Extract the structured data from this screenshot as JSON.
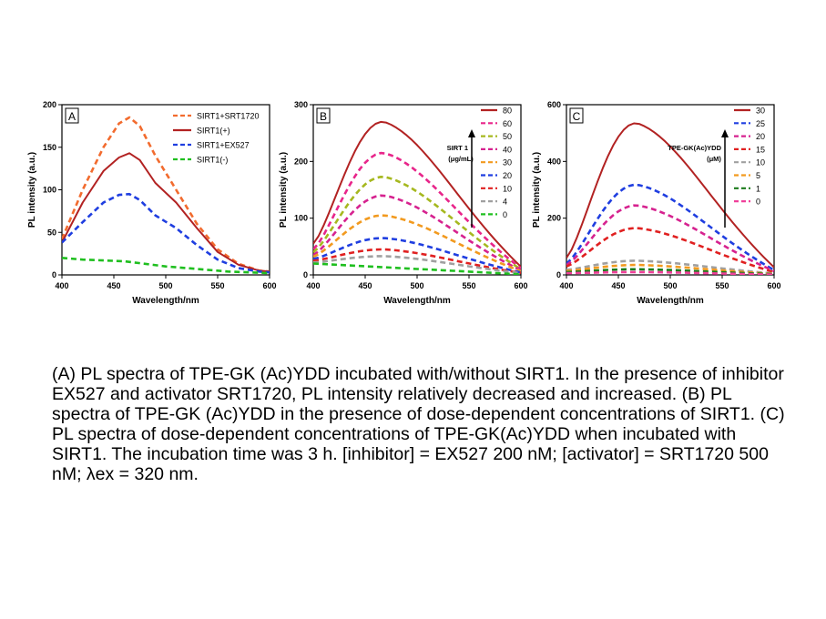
{
  "chart_data": [
    {
      "type": "line",
      "panel_label": "A",
      "xlabel": "Wavelength/nm",
      "ylabel": "PL intensity (a.u.)",
      "xlim": [
        400,
        600
      ],
      "ylim": [
        0,
        200
      ],
      "xticks": [
        400,
        450,
        500,
        550,
        600
      ],
      "yticks": [
        0,
        50,
        100,
        150,
        200
      ],
      "legend_position": "top-right",
      "series": [
        {
          "name": "SIRT1+SRT1720",
          "color": "#f26b2e",
          "dashed": true,
          "points": [
            [
              400,
              42
            ],
            [
              420,
              100
            ],
            [
              440,
              150
            ],
            [
              455,
              178
            ],
            [
              465,
              185
            ],
            [
              475,
              175
            ],
            [
              490,
              140
            ],
            [
              510,
              100
            ],
            [
              530,
              60
            ],
            [
              550,
              30
            ],
            [
              570,
              13
            ],
            [
              590,
              5
            ],
            [
              600,
              4
            ]
          ]
        },
        {
          "name": "SIRT1(+)",
          "color": "#b22222",
          "dashed": false,
          "points": [
            [
              400,
              38
            ],
            [
              420,
              85
            ],
            [
              440,
              122
            ],
            [
              455,
              138
            ],
            [
              465,
              143
            ],
            [
              475,
              135
            ],
            [
              490,
              108
            ],
            [
              510,
              85
            ],
            [
              530,
              55
            ],
            [
              550,
              27
            ],
            [
              570,
              12
            ],
            [
              590,
              5
            ],
            [
              600,
              4
            ]
          ]
        },
        {
          "name": "SIRT1+EX527",
          "color": "#1f3ee0",
          "dashed": true,
          "points": [
            [
              400,
              38
            ],
            [
              420,
              62
            ],
            [
              440,
              85
            ],
            [
              455,
              94
            ],
            [
              465,
              95
            ],
            [
              475,
              88
            ],
            [
              490,
              70
            ],
            [
              510,
              55
            ],
            [
              530,
              35
            ],
            [
              550,
              18
            ],
            [
              570,
              8
            ],
            [
              590,
              4
            ],
            [
              600,
              3
            ]
          ]
        },
        {
          "name": "SIRT1(-)",
          "color": "#1fbf1f",
          "dashed": true,
          "points": [
            [
              400,
              20
            ],
            [
              420,
              18
            ],
            [
              440,
              17
            ],
            [
              460,
              16
            ],
            [
              480,
              13
            ],
            [
              500,
              10
            ],
            [
              520,
              8
            ],
            [
              540,
              6
            ],
            [
              560,
              4
            ],
            [
              580,
              3
            ],
            [
              600,
              2
            ]
          ]
        }
      ]
    },
    {
      "type": "line",
      "panel_label": "B",
      "xlabel": "Wavelength/nm",
      "ylabel": "PL intensity (a.u.)",
      "xlim": [
        400,
        600
      ],
      "ylim": [
        0,
        300
      ],
      "xticks": [
        400,
        450,
        500,
        550,
        600
      ],
      "yticks": [
        0,
        100,
        200,
        300
      ],
      "legend_position": "right",
      "arrow_label": [
        "SIRT 1",
        "(μg/mL)"
      ],
      "series": [
        {
          "name": "80",
          "color": "#b22222",
          "dashed": false,
          "peak": 270,
          "start": 55,
          "tail": 5
        },
        {
          "name": "60",
          "color": "#e8258a",
          "dashed": true,
          "peak": 215,
          "start": 45,
          "tail": 4
        },
        {
          "name": "50",
          "color": "#a6b81f",
          "dashed": true,
          "peak": 173,
          "start": 40,
          "tail": 4
        },
        {
          "name": "40",
          "color": "#d6228f",
          "dashed": true,
          "peak": 140,
          "start": 35,
          "tail": 3
        },
        {
          "name": "30",
          "color": "#f29a1f",
          "dashed": true,
          "peak": 105,
          "start": 32,
          "tail": 3
        },
        {
          "name": "20",
          "color": "#1f3ee0",
          "dashed": true,
          "peak": 65,
          "start": 28,
          "tail": 2
        },
        {
          "name": "10",
          "color": "#e02020",
          "dashed": true,
          "peak": 45,
          "start": 25,
          "tail": 2
        },
        {
          "name": "4",
          "color": "#a0a0a0",
          "dashed": true,
          "peak": 33,
          "start": 22,
          "tail": 2
        },
        {
          "name": "0",
          "color": "#1fbf1f",
          "dashed": true,
          "peak": 18,
          "start": 20,
          "tail": 1,
          "flat": true
        }
      ]
    },
    {
      "type": "line",
      "panel_label": "C",
      "xlabel": "Wavelength/nm",
      "ylabel": "PL intensity (a.u.)",
      "xlim": [
        400,
        600
      ],
      "ylim": [
        0,
        600
      ],
      "xticks": [
        400,
        450,
        500,
        550,
        600
      ],
      "yticks": [
        0,
        200,
        400,
        600
      ],
      "legend_position": "right",
      "arrow_label": [
        "TPE-GK(Ac)YDD",
        "(μM)"
      ],
      "series": [
        {
          "name": "30",
          "color": "#b22222",
          "dashed": false,
          "peak": 535,
          "start": 60,
          "tail": 8
        },
        {
          "name": "25",
          "color": "#1f3ee0",
          "dashed": true,
          "peak": 318,
          "start": 40,
          "tail": 6
        },
        {
          "name": "20",
          "color": "#d6228f",
          "dashed": true,
          "peak": 245,
          "start": 35,
          "tail": 5
        },
        {
          "name": "15",
          "color": "#e02020",
          "dashed": true,
          "peak": 165,
          "start": 30,
          "tail": 4
        },
        {
          "name": "10",
          "color": "#a0a0a0",
          "dashed": true,
          "peak": 50,
          "start": 18,
          "tail": 3
        },
        {
          "name": "5",
          "color": "#f29a1f",
          "dashed": true,
          "peak": 35,
          "start": 14,
          "tail": 2
        },
        {
          "name": "1",
          "color": "#1a7a1a",
          "dashed": true,
          "peak": 20,
          "start": 10,
          "tail": 2
        },
        {
          "name": "0",
          "color": "#f0409a",
          "dashed": true,
          "peak": 10,
          "start": 6,
          "tail": 1
        }
      ]
    }
  ],
  "caption": "(A) PL spectra of TPE-GK (Ac)YDD incubated with/without SIRT1. In the presence of inhibitor EX527 and activator SRT1720, PL intensity relatively decreased and increased. (B) PL spectra of TPE-GK (Ac)YDD in the presence of dose-dependent concentrations of SIRT1. (C) PL spectra of dose-dependent concentrations of TPE-GK(Ac)YDD when incubated with SIRT1. The incubation time was 3 h. [inhibitor] = EX527 200 nM; [activator] = SRT1720 500 nM; λex = 320 nm."
}
